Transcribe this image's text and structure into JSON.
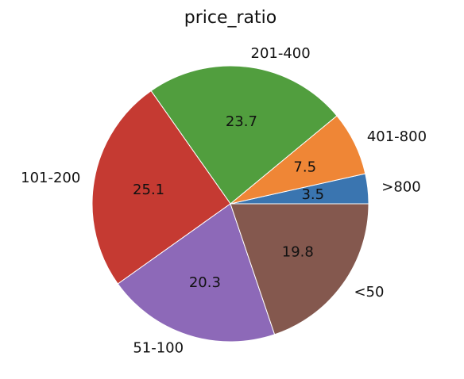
{
  "chart_data": {
    "type": "pie",
    "title": "price_ratio",
    "start_angle_deg": 0,
    "direction": "counterclockwise",
    "slices": [
      {
        "label": ">800",
        "value": 3.5,
        "pct_label": "3.5",
        "color": "#3a75b0"
      },
      {
        "label": "401-800",
        "value": 7.5,
        "pct_label": "7.5",
        "color": "#ef8636"
      },
      {
        "label": "201-400",
        "value": 23.7,
        "pct_label": "23.7",
        "color": "#519e3e"
      },
      {
        "label": "101-200",
        "value": 25.1,
        "pct_label": "25.1",
        "color": "#c53a32"
      },
      {
        "label": "51-100",
        "value": 20.3,
        "pct_label": "20.3",
        "color": "#8d69b8"
      },
      {
        "label": "<50",
        "value": 19.8,
        "pct_label": "19.8",
        "color": "#84584e"
      }
    ]
  }
}
